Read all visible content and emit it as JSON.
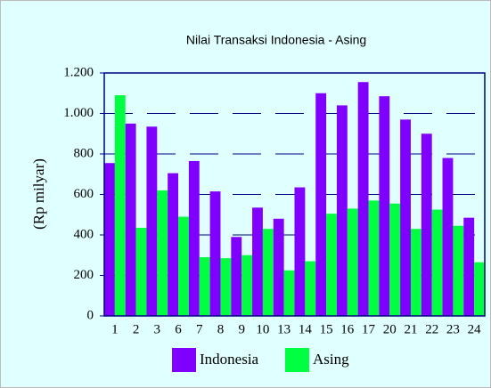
{
  "chart_data": {
    "type": "bar",
    "title": "Nilai Transaksi Indonesia - Asing",
    "y_label": "(Rp milyar)",
    "categories": [
      "1",
      "2",
      "3",
      "6",
      "7",
      "8",
      "9",
      "10",
      "13",
      "14",
      "15",
      "16",
      "17",
      "20",
      "21",
      "22",
      "23",
      "24"
    ],
    "series": [
      {
        "name": "Indonesia",
        "color": "#7f00ff",
        "values": [
          755,
          950,
          935,
          705,
          765,
          615,
          390,
          535,
          480,
          635,
          1100,
          1040,
          1155,
          1085,
          970,
          900,
          780,
          485
        ]
      },
      {
        "name": "Asing",
        "color": "#00ff40",
        "values": [
          1090,
          435,
          620,
          490,
          290,
          285,
          300,
          430,
          225,
          270,
          505,
          530,
          570,
          555,
          430,
          525,
          445,
          265
        ]
      }
    ],
    "ylim": [
      0,
      1200
    ],
    "yticks": [
      0,
      200,
      400,
      600,
      800,
      {
        "value": 1000,
        "label": "1.000"
      },
      {
        "value": 1200,
        "label": "1.200"
      }
    ],
    "grid": true,
    "legend": "bottom"
  }
}
